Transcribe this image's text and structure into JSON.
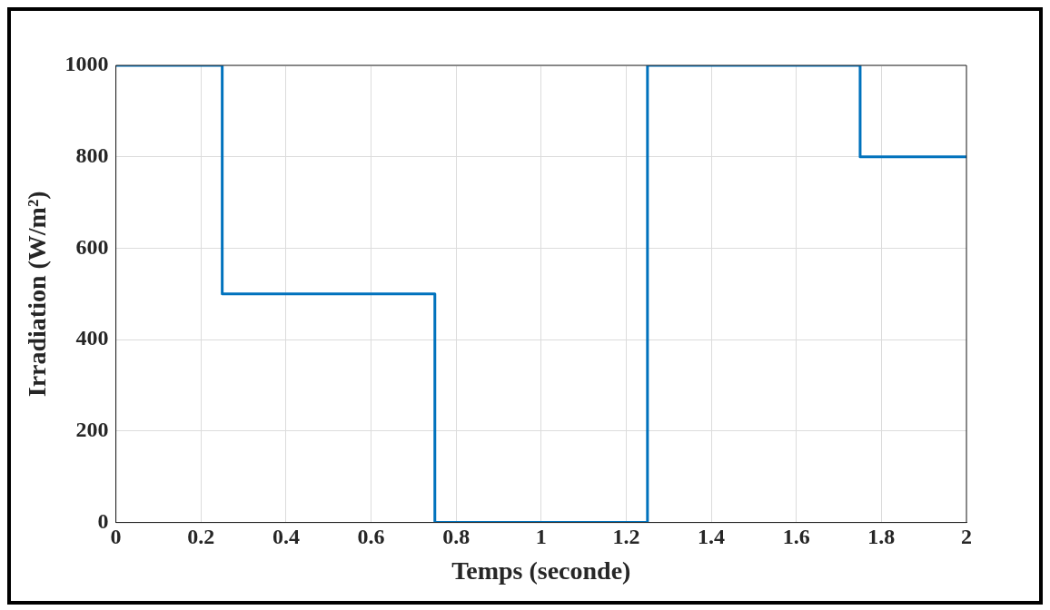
{
  "chart_data": {
    "type": "step",
    "xlabel": "Temps (seconde)",
    "ylabel": "Irradiation (W/m²)",
    "x": [
      0,
      0.25,
      0.75,
      1.25,
      1.75,
      2
    ],
    "series": [
      {
        "color": "#0072bd",
        "values": [
          1000,
          500,
          0,
          1000,
          800,
          800
        ]
      }
    ],
    "xlim": [
      0,
      2
    ],
    "xticks": [
      0,
      0.2,
      0.4,
      0.6,
      0.8,
      1,
      1.2,
      1.4,
      1.6,
      1.8,
      2
    ],
    "ylim": [
      0,
      1000
    ],
    "yticks": [
      0,
      200,
      400,
      600,
      800,
      1000
    ],
    "grid": true,
    "legend": false,
    "marker": "none",
    "line_style": "solid"
  }
}
